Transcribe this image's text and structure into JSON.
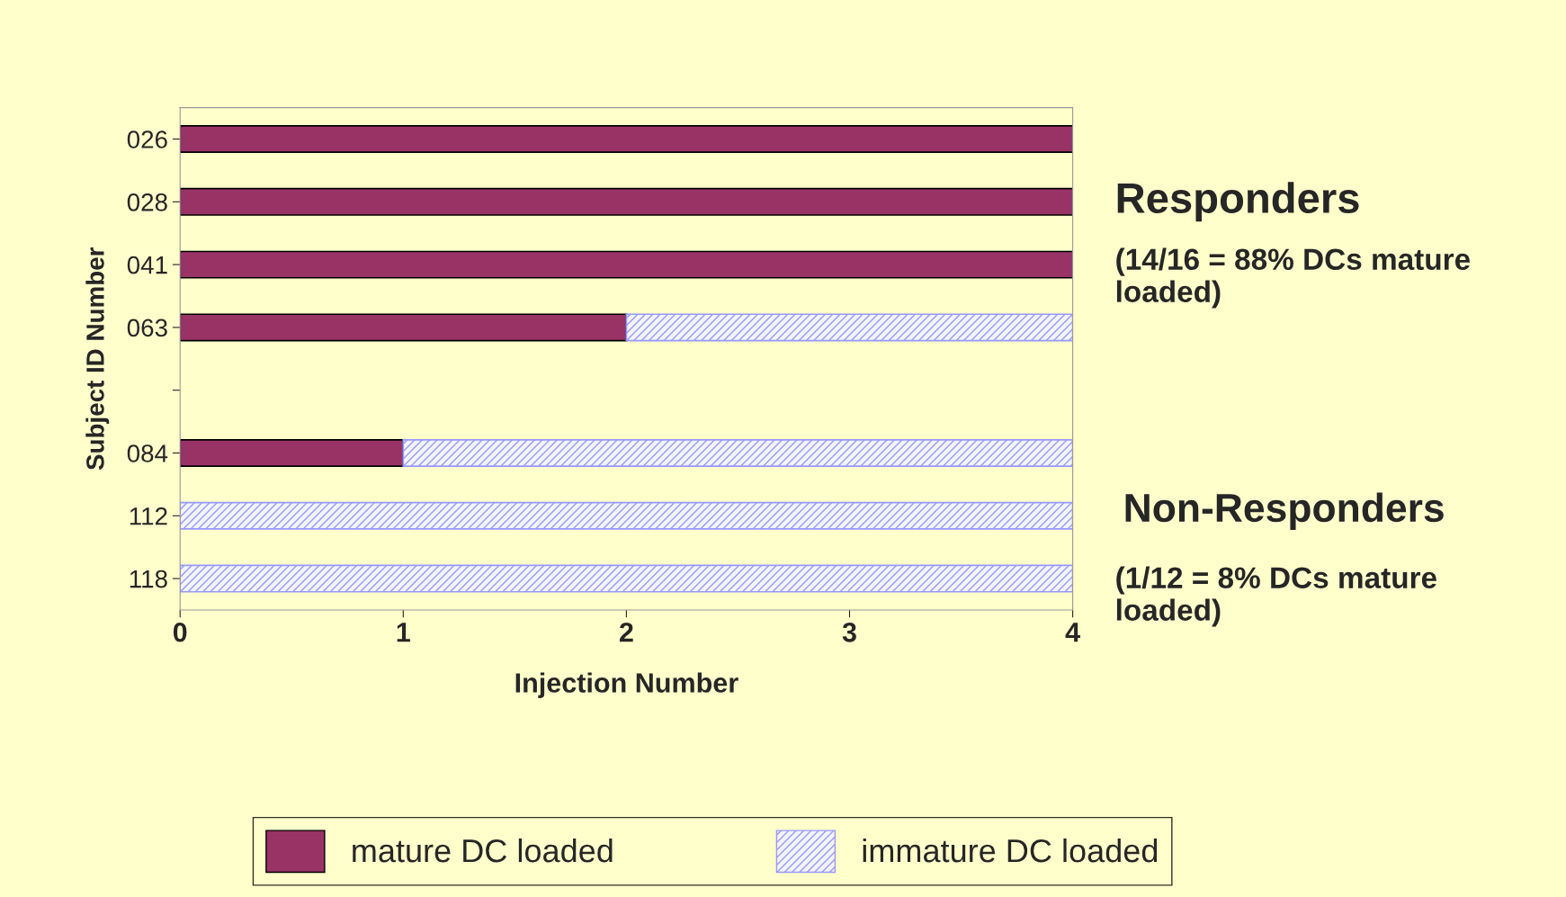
{
  "chart_data": {
    "type": "bar",
    "orientation": "horizontal",
    "stacked": true,
    "xlabel": "Injection Number",
    "ylabel": "Subject ID Number",
    "categories": [
      "026",
      "028",
      "041",
      "063",
      null,
      "084",
      "112",
      "118"
    ],
    "series": [
      {
        "name": "mature DC loaded",
        "color": "#993366",
        "values": [
          4,
          4,
          4,
          2,
          null,
          1,
          0,
          0
        ]
      },
      {
        "name": "immature DC loaded",
        "color": "#9999ff",
        "values": [
          0,
          0,
          0,
          2,
          null,
          3,
          4,
          4
        ]
      }
    ],
    "xlim": [
      0,
      4
    ],
    "xticks": [
      0,
      1,
      2,
      3,
      4
    ],
    "grid": false,
    "legend": "bottom",
    "annotations": [
      "Responders",
      "(14/16 = 88% DCs mature loaded)",
      "Non-Responders",
      "(1/12 = 8% DCs mature loaded)"
    ]
  }
}
